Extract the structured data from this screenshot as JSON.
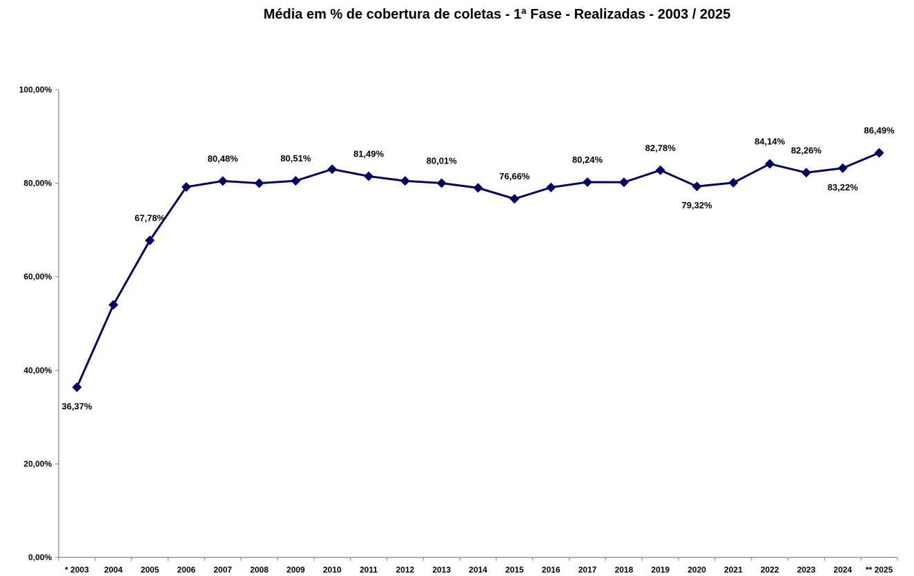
{
  "chart_data": {
    "type": "line",
    "title": "Média em % de cobertura de coletas - 1ª Fase - Realizadas - 2003 / 2025",
    "xlabel": "",
    "ylabel": "",
    "ylim": [
      0,
      100
    ],
    "grid": false,
    "legend": "none",
    "y_ticks": [
      "0,00%",
      "20,00%",
      "40,00%",
      "60,00%",
      "80,00%",
      "100,00%"
    ],
    "categories": [
      "* 2003",
      "2004",
      "2005",
      "2006",
      "2007",
      "2008",
      "2009",
      "2010",
      "2011",
      "2012",
      "2013",
      "2014",
      "2015",
      "2016",
      "2017",
      "2018",
      "2019",
      "2020",
      "2021",
      "2022",
      "2023",
      "2024",
      "** 2025"
    ],
    "series": [
      {
        "color": "#000066",
        "values": [
          36.37,
          54.0,
          67.78,
          79.2,
          80.48,
          80.0,
          80.51,
          83.0,
          81.49,
          80.5,
          80.01,
          79.0,
          76.66,
          79.1,
          80.24,
          80.2,
          82.78,
          79.32,
          80.1,
          84.14,
          82.26,
          83.22,
          86.49
        ]
      }
    ],
    "data_labels": [
      {
        "index": 0,
        "text": "36,37%",
        "position": "below"
      },
      {
        "index": 2,
        "text": "67,78%",
        "position": "above"
      },
      {
        "index": 4,
        "text": "80,48%",
        "position": "above"
      },
      {
        "index": 6,
        "text": "80,51%",
        "position": "above"
      },
      {
        "index": 8,
        "text": "81,49%",
        "position": "above"
      },
      {
        "index": 10,
        "text": "80,01%",
        "position": "above"
      },
      {
        "index": 12,
        "text": "76,66%",
        "position": "above"
      },
      {
        "index": 14,
        "text": "80,24%",
        "position": "above"
      },
      {
        "index": 16,
        "text": "82,78%",
        "position": "above"
      },
      {
        "index": 17,
        "text": "79,32%",
        "position": "below"
      },
      {
        "index": 19,
        "text": "84,14%",
        "position": "above"
      },
      {
        "index": 20,
        "text": "82,26%",
        "position": "above"
      },
      {
        "index": 21,
        "text": "83,22%",
        "position": "below"
      },
      {
        "index": 22,
        "text": "86,49%",
        "position": "above"
      }
    ]
  }
}
